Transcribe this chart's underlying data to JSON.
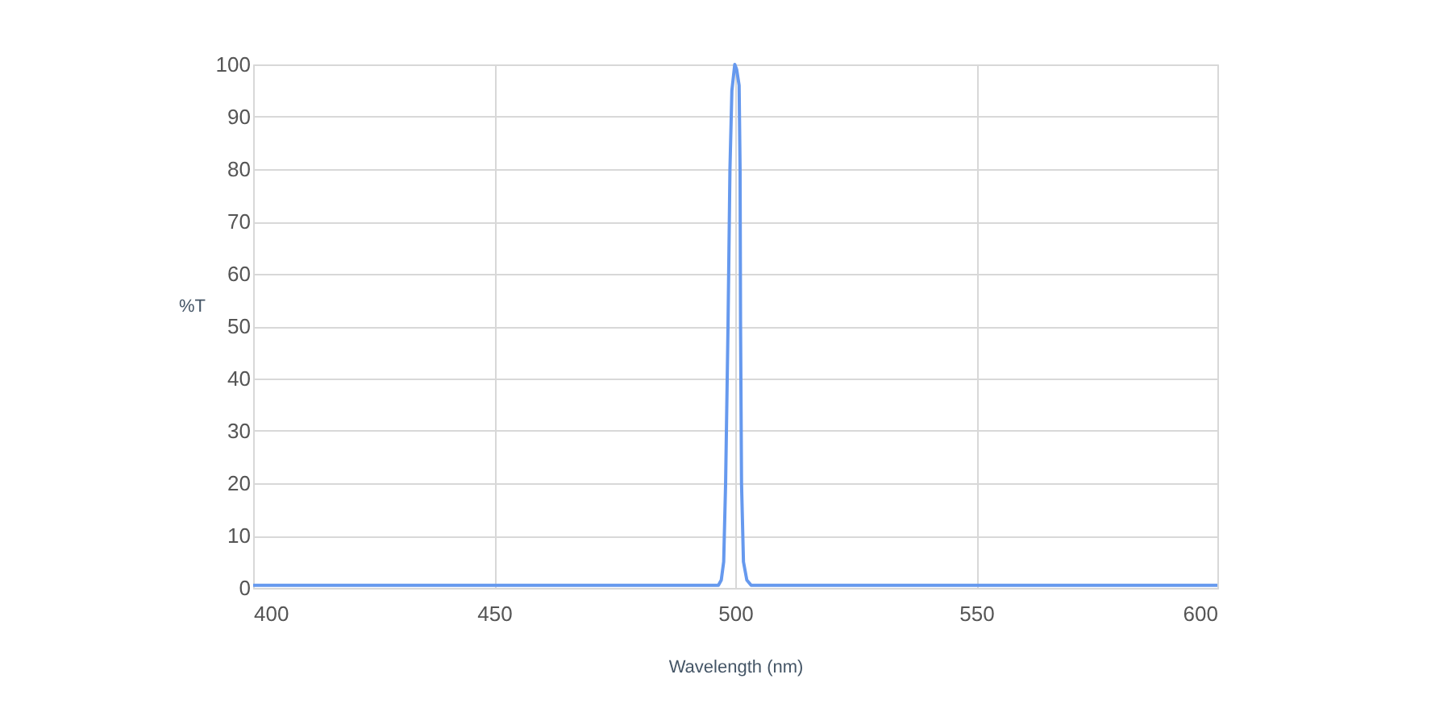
{
  "chart_data": {
    "type": "line",
    "xlabel": "Wavelength (nm)",
    "ylabel": "%T",
    "xlim": [
      400,
      600
    ],
    "xticks": [
      400,
      450,
      500,
      550,
      600
    ],
    "ylim": [
      0,
      100
    ],
    "yticks": [
      0,
      10,
      20,
      30,
      40,
      50,
      60,
      70,
      80,
      90,
      100
    ],
    "grid": true,
    "marker": "none",
    "line_style": "solid",
    "series": [
      {
        "color": "#6699ee",
        "x": [
          400,
          450,
          496.5,
          497.1,
          497.6,
          498.0,
          498.5,
          498.9,
          499.3,
          499.9,
          500.3,
          500.8,
          501.0,
          501.1,
          501.3,
          501.7,
          502.4,
          503.3,
          550,
          600
        ],
        "values": [
          0.5,
          0.5,
          0.5,
          1.5,
          5,
          20,
          50,
          80,
          95,
          100,
          99,
          96,
          80,
          50,
          20,
          5,
          1.5,
          0.5,
          0.5,
          0.5
        ]
      }
    ]
  }
}
